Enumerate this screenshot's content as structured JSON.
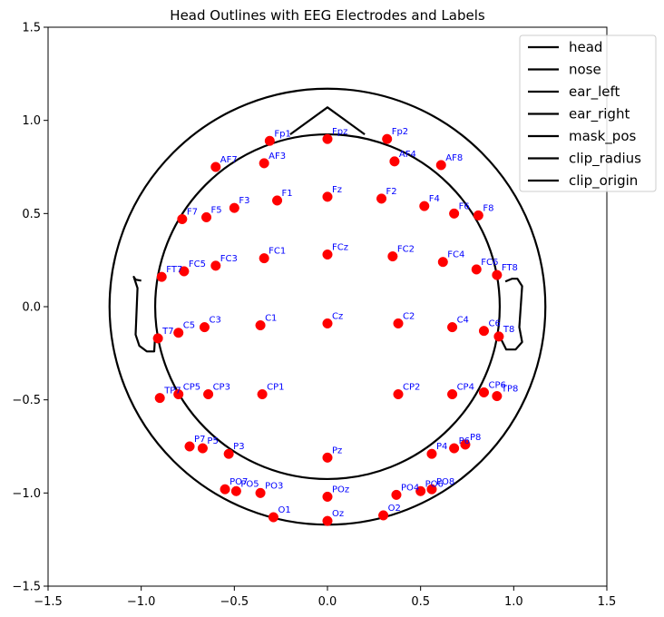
{
  "chart_data": {
    "type": "scatter",
    "title": "Head Outlines with EEG Electrodes and Labels",
    "xlabel": "",
    "ylabel": "",
    "xlim": [
      -1.5,
      1.5
    ],
    "ylim": [
      -1.5,
      1.5
    ],
    "xticks": [
      "−1.5",
      "−1.0",
      "−0.5",
      "0.0",
      "0.5",
      "1.0",
      "1.5"
    ],
    "yticks": [
      "−1.5",
      "−1.0",
      "−0.5",
      "0.0",
      "0.5",
      "1.0",
      "1.5"
    ],
    "xtick_values": [
      -1.5,
      -1.0,
      -0.5,
      0.0,
      0.5,
      1.0,
      1.5
    ],
    "ytick_values": [
      -1.5,
      -1.0,
      -0.5,
      0.0,
      0.5,
      1.0,
      1.5
    ],
    "grid": false,
    "legend_position": "top-right",
    "legend": [
      "head",
      "nose",
      "ear_left",
      "ear_right",
      "mask_pos",
      "clip_radius",
      "clip_origin"
    ],
    "outlines": {
      "head_radius": 1.17,
      "clip_radius": 0.925,
      "nose": [
        [
          -0.2,
          0.925
        ],
        [
          0.0,
          1.07
        ],
        [
          0.2,
          0.925
        ]
      ],
      "ear_left": [
        [
          -1.0,
          0.14
        ],
        [
          -1.03,
          0.145
        ],
        [
          -1.04,
          0.16
        ],
        [
          -1.02,
          0.1
        ],
        [
          -1.03,
          -0.15
        ],
        [
          -1.01,
          -0.21
        ],
        [
          -0.97,
          -0.24
        ],
        [
          -0.93,
          -0.24
        ],
        [
          -0.925,
          -0.15
        ]
      ],
      "ear_right": [
        [
          0.955,
          0.135
        ],
        [
          0.99,
          0.15
        ],
        [
          1.02,
          0.15
        ],
        [
          1.045,
          0.11
        ],
        [
          1.03,
          -0.11
        ],
        [
          1.045,
          -0.19
        ],
        [
          1.01,
          -0.23
        ],
        [
          0.96,
          -0.23
        ],
        [
          0.925,
          -0.16
        ]
      ]
    },
    "electrodes": [
      {
        "name": "Fp1",
        "x": -0.31,
        "y": 0.89
      },
      {
        "name": "Fpz",
        "x": 0.0,
        "y": 0.9
      },
      {
        "name": "Fp2",
        "x": 0.32,
        "y": 0.9
      },
      {
        "name": "AF7",
        "x": -0.6,
        "y": 0.75
      },
      {
        "name": "AF3",
        "x": -0.34,
        "y": 0.77
      },
      {
        "name": "AF4",
        "x": 0.36,
        "y": 0.78
      },
      {
        "name": "AF8",
        "x": 0.61,
        "y": 0.76
      },
      {
        "name": "F7",
        "x": -0.78,
        "y": 0.47
      },
      {
        "name": "F5",
        "x": -0.65,
        "y": 0.48
      },
      {
        "name": "F3",
        "x": -0.5,
        "y": 0.53
      },
      {
        "name": "F1",
        "x": -0.27,
        "y": 0.57
      },
      {
        "name": "Fz",
        "x": 0.0,
        "y": 0.59
      },
      {
        "name": "F2",
        "x": 0.29,
        "y": 0.58
      },
      {
        "name": "F4",
        "x": 0.52,
        "y": 0.54
      },
      {
        "name": "F6",
        "x": 0.68,
        "y": 0.5
      },
      {
        "name": "F8",
        "x": 0.81,
        "y": 0.49
      },
      {
        "name": "FT7",
        "x": -0.89,
        "y": 0.16
      },
      {
        "name": "FC5",
        "x": -0.77,
        "y": 0.19
      },
      {
        "name": "FC3",
        "x": -0.6,
        "y": 0.22
      },
      {
        "name": "FC1",
        "x": -0.34,
        "y": 0.26
      },
      {
        "name": "FCz",
        "x": 0.0,
        "y": 0.28
      },
      {
        "name": "FC2",
        "x": 0.35,
        "y": 0.27
      },
      {
        "name": "FC4",
        "x": 0.62,
        "y": 0.24
      },
      {
        "name": "FC6",
        "x": 0.8,
        "y": 0.2
      },
      {
        "name": "FT8",
        "x": 0.91,
        "y": 0.17
      },
      {
        "name": "T7",
        "x": -0.91,
        "y": -0.17
      },
      {
        "name": "C5",
        "x": -0.8,
        "y": -0.14
      },
      {
        "name": "C3",
        "x": -0.66,
        "y": -0.11
      },
      {
        "name": "C1",
        "x": -0.36,
        "y": -0.1
      },
      {
        "name": "Cz",
        "x": 0.0,
        "y": -0.09
      },
      {
        "name": "C2",
        "x": 0.38,
        "y": -0.09
      },
      {
        "name": "C4",
        "x": 0.67,
        "y": -0.11
      },
      {
        "name": "C6",
        "x": 0.84,
        "y": -0.13
      },
      {
        "name": "T8",
        "x": 0.92,
        "y": -0.16
      },
      {
        "name": "TP7",
        "x": -0.9,
        "y": -0.49
      },
      {
        "name": "CP5",
        "x": -0.8,
        "y": -0.47
      },
      {
        "name": "CP3",
        "x": -0.64,
        "y": -0.47
      },
      {
        "name": "CP1",
        "x": -0.35,
        "y": -0.47
      },
      {
        "name": "CP2",
        "x": 0.38,
        "y": -0.47
      },
      {
        "name": "CP4",
        "x": 0.67,
        "y": -0.47
      },
      {
        "name": "CP6",
        "x": 0.84,
        "y": -0.46
      },
      {
        "name": "TP8",
        "x": 0.91,
        "y": -0.48
      },
      {
        "name": "P7",
        "x": -0.74,
        "y": -0.75
      },
      {
        "name": "P5",
        "x": -0.67,
        "y": -0.76
      },
      {
        "name": "P3",
        "x": -0.53,
        "y": -0.79
      },
      {
        "name": "Pz",
        "x": 0.0,
        "y": -0.81
      },
      {
        "name": "P4",
        "x": 0.56,
        "y": -0.79
      },
      {
        "name": "P6",
        "x": 0.68,
        "y": -0.76
      },
      {
        "name": "P8",
        "x": 0.74,
        "y": -0.74
      },
      {
        "name": "PO7",
        "x": -0.55,
        "y": -0.98
      },
      {
        "name": "PO5",
        "x": -0.49,
        "y": -0.99
      },
      {
        "name": "PO3",
        "x": -0.36,
        "y": -1.0
      },
      {
        "name": "POz",
        "x": 0.0,
        "y": -1.02
      },
      {
        "name": "PO4",
        "x": 0.37,
        "y": -1.01
      },
      {
        "name": "PO6",
        "x": 0.5,
        "y": -0.99
      },
      {
        "name": "PO8",
        "x": 0.56,
        "y": -0.98
      },
      {
        "name": "O1",
        "x": -0.29,
        "y": -1.13
      },
      {
        "name": "Oz",
        "x": 0.0,
        "y": -1.15
      },
      {
        "name": "O2",
        "x": 0.3,
        "y": -1.12
      }
    ]
  }
}
